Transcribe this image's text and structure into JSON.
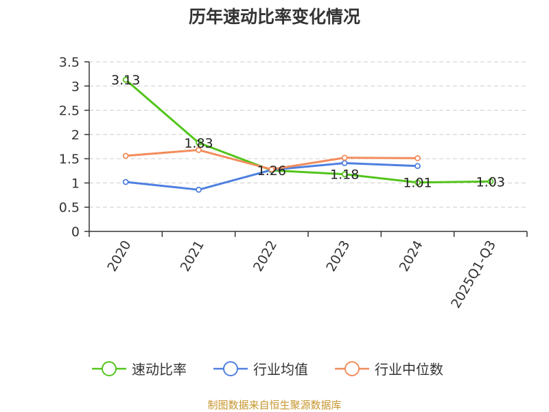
{
  "chart_data": {
    "type": "line",
    "title": "历年速动比率变化情况",
    "categories": [
      "2020",
      "2021",
      "2022",
      "2023",
      "2024",
      "2025Q1-Q3"
    ],
    "ylim": [
      0,
      3.5
    ],
    "yticks": [
      "0",
      "0.5",
      "1",
      "1.5",
      "2",
      "2.5",
      "3",
      "3.5"
    ],
    "grid": true,
    "legend_position": "bottom",
    "series": [
      {
        "name": "速动比率",
        "color": "#52c41a",
        "values": [
          3.13,
          1.83,
          1.26,
          1.18,
          1.01,
          1.03
        ],
        "labels": [
          "3.13",
          "1.83",
          "1.26",
          "1.18",
          "1.01",
          "1.03"
        ]
      },
      {
        "name": "行业均值",
        "color": "#4e7fe0",
        "values": [
          1.02,
          0.86,
          1.27,
          1.41,
          1.35,
          null
        ]
      },
      {
        "name": "行业中位数",
        "color": "#f28c5c",
        "values": [
          1.56,
          1.68,
          1.28,
          1.52,
          1.51,
          null
        ]
      }
    ]
  },
  "source_text": "制图数据来自恒生聚源数据库"
}
